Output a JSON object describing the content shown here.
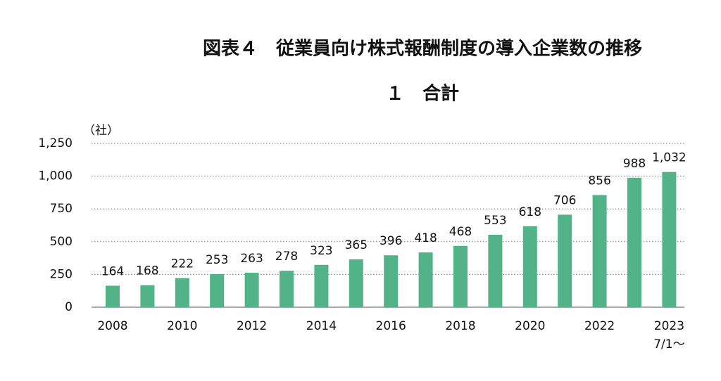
{
  "chart_data": {
    "type": "bar",
    "title": "図表４　従業員向け株式報酬制度の導入企業数の推移",
    "subtitle": "１　合計",
    "y_unit": "（社）",
    "categories": [
      "2008",
      null,
      "2010",
      null,
      "2012",
      null,
      "2014",
      null,
      "2016",
      null,
      "2018",
      null,
      "2020",
      null,
      "2022",
      null,
      "2023\n7/1〜"
    ],
    "values": [
      164,
      168,
      222,
      253,
      263,
      278,
      323,
      365,
      396,
      418,
      468,
      553,
      618,
      706,
      856,
      988,
      1032
    ],
    "value_labels": [
      "164",
      "168",
      "222",
      "253",
      "263",
      "278",
      "323",
      "365",
      "396",
      "418",
      "468",
      "553",
      "618",
      "706",
      "856",
      "988",
      "1,032"
    ],
    "color": "#52b388",
    "ylim": [
      0,
      1250
    ],
    "yticks": [
      0,
      250,
      500,
      750,
      {
        "value": 1000,
        "label": "1,000"
      },
      {
        "value": 1250,
        "label": "1,250"
      }
    ],
    "grid": true
  }
}
